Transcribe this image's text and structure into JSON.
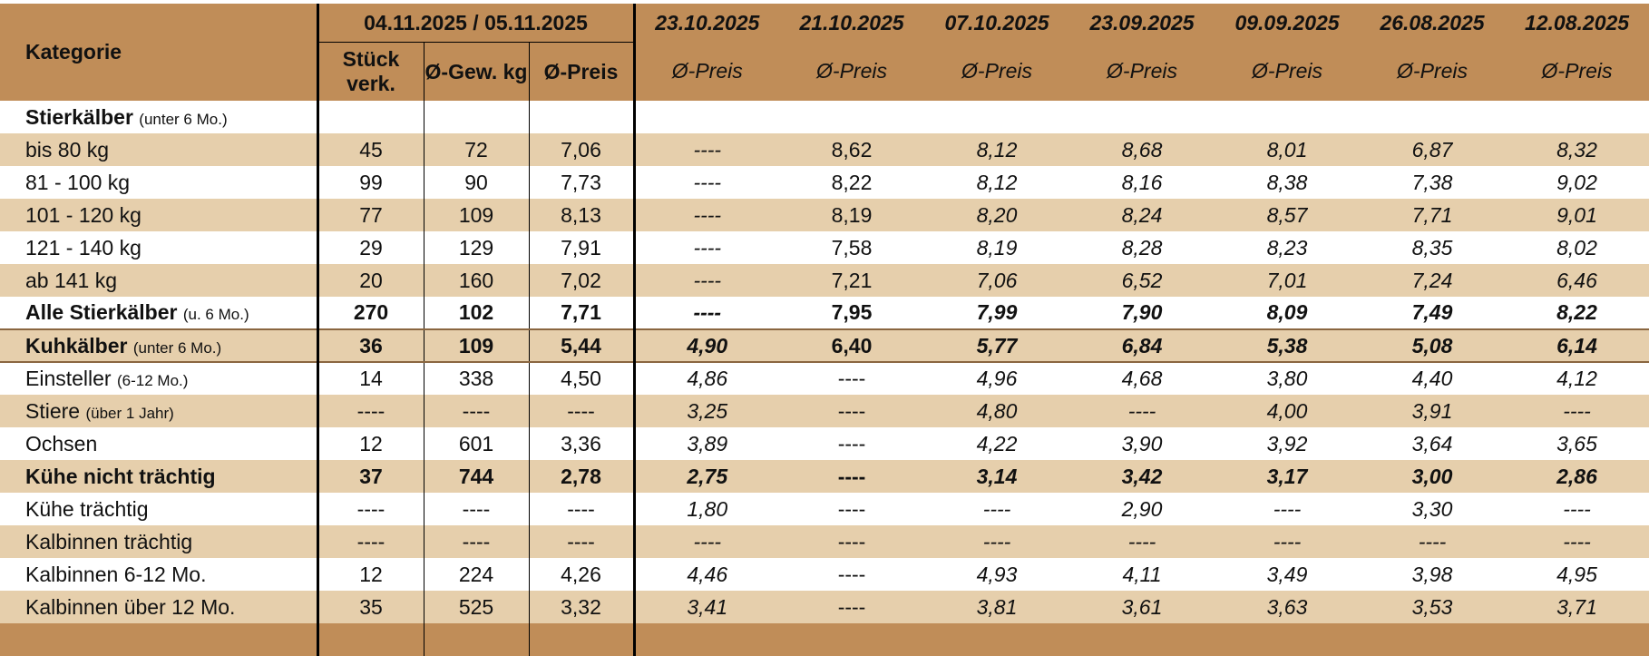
{
  "header": {
    "category_label": "Kategorie",
    "current_period": "04.11.2025 / 05.11.2025",
    "col_count": "Stück verk.",
    "col_weight": "Ø-Gew. kg",
    "col_price": "Ø-Preis",
    "prev_dates": [
      "23.10.2025",
      "21.10.2025",
      "07.10.2025",
      "23.09.2025",
      "09.09.2025",
      "26.08.2025",
      "12.08.2025"
    ],
    "prev_label": "Ø-Preis"
  },
  "rows": [
    {
      "label": "Stierkälber",
      "suffix": "(unter 6 Mo.)",
      "cells": [
        "",
        "",
        "",
        "",
        "",
        "",
        "",
        "",
        "",
        ""
      ]
    },
    {
      "label": "bis 80 kg",
      "suffix": "",
      "cells": [
        "45",
        "72",
        "7,06",
        "----",
        "8,62",
        "8,12",
        "8,68",
        "8,01",
        "6,87",
        "8,32"
      ]
    },
    {
      "label": "81 - 100 kg",
      "suffix": "",
      "cells": [
        "99",
        "90",
        "7,73",
        "----",
        "8,22",
        "8,12",
        "8,16",
        "8,38",
        "7,38",
        "9,02"
      ]
    },
    {
      "label": "101 - 120 kg",
      "suffix": "",
      "cells": [
        "77",
        "109",
        "8,13",
        "----",
        "8,19",
        "8,20",
        "8,24",
        "8,57",
        "7,71",
        "9,01"
      ]
    },
    {
      "label": "121 - 140 kg",
      "suffix": "",
      "cells": [
        "29",
        "129",
        "7,91",
        "----",
        "7,58",
        "8,19",
        "8,28",
        "8,23",
        "8,35",
        "8,02"
      ]
    },
    {
      "label": "ab 141 kg",
      "suffix": "",
      "cells": [
        "20",
        "160",
        "7,02",
        "----",
        "7,21",
        "7,06",
        "6,52",
        "7,01",
        "7,24",
        "6,46"
      ]
    },
    {
      "label": "Alle Stierkälber",
      "suffix": "(u. 6 Mo.)",
      "cells": [
        "270",
        "102",
        "7,71",
        "----",
        "7,95",
        "7,99",
        "7,90",
        "8,09",
        "7,49",
        "8,22"
      ]
    },
    {
      "label": "Kuhkälber",
      "suffix": "(unter 6 Mo.)",
      "cells": [
        "36",
        "109",
        "5,44",
        "4,90",
        "6,40",
        "5,77",
        "6,84",
        "5,38",
        "5,08",
        "6,14"
      ]
    },
    {
      "label": "Einsteller",
      "suffix": "(6-12 Mo.)",
      "cells": [
        "14",
        "338",
        "4,50",
        "4,86",
        "----",
        "4,96",
        "4,68",
        "3,80",
        "4,40",
        "4,12"
      ]
    },
    {
      "label": "Stiere",
      "suffix": "(über 1 Jahr)",
      "cells": [
        "----",
        "----",
        "----",
        "3,25",
        "----",
        "4,80",
        "----",
        "4,00",
        "3,91",
        "----"
      ]
    },
    {
      "label": "Ochsen",
      "suffix": "",
      "cells": [
        "12",
        "601",
        "3,36",
        "3,89",
        "----",
        "4,22",
        "3,90",
        "3,92",
        "3,64",
        "3,65"
      ]
    },
    {
      "label": "Kühe nicht trächtig",
      "suffix": "",
      "cells": [
        "37",
        "744",
        "2,78",
        "2,75",
        "----",
        "3,14",
        "3,42",
        "3,17",
        "3,00",
        "2,86"
      ]
    },
    {
      "label": "Kühe trächtig",
      "suffix": "",
      "cells": [
        "----",
        "----",
        "----",
        "1,80",
        "----",
        "----",
        "2,90",
        "----",
        "3,30",
        "----"
      ]
    },
    {
      "label": "Kalbinnen trächtig",
      "suffix": "",
      "cells": [
        "----",
        "----",
        "----",
        "----",
        "----",
        "----",
        "----",
        "----",
        "----",
        "----"
      ]
    },
    {
      "label": "Kalbinnen 6-12 Mo.",
      "suffix": "",
      "cells": [
        "12",
        "224",
        "4,26",
        "4,46",
        "----",
        "4,93",
        "4,11",
        "3,49",
        "3,98",
        "4,95"
      ]
    },
    {
      "label": "Kalbinnen über 12 Mo.",
      "suffix": "",
      "cells": [
        "35",
        "525",
        "3,32",
        "3,41",
        "----",
        "3,81",
        "3,61",
        "3,63",
        "3,53",
        "3,71"
      ]
    }
  ],
  "colors": {
    "header": "#c08d58",
    "shade": "#e6cfac",
    "rule": "#000000"
  }
}
